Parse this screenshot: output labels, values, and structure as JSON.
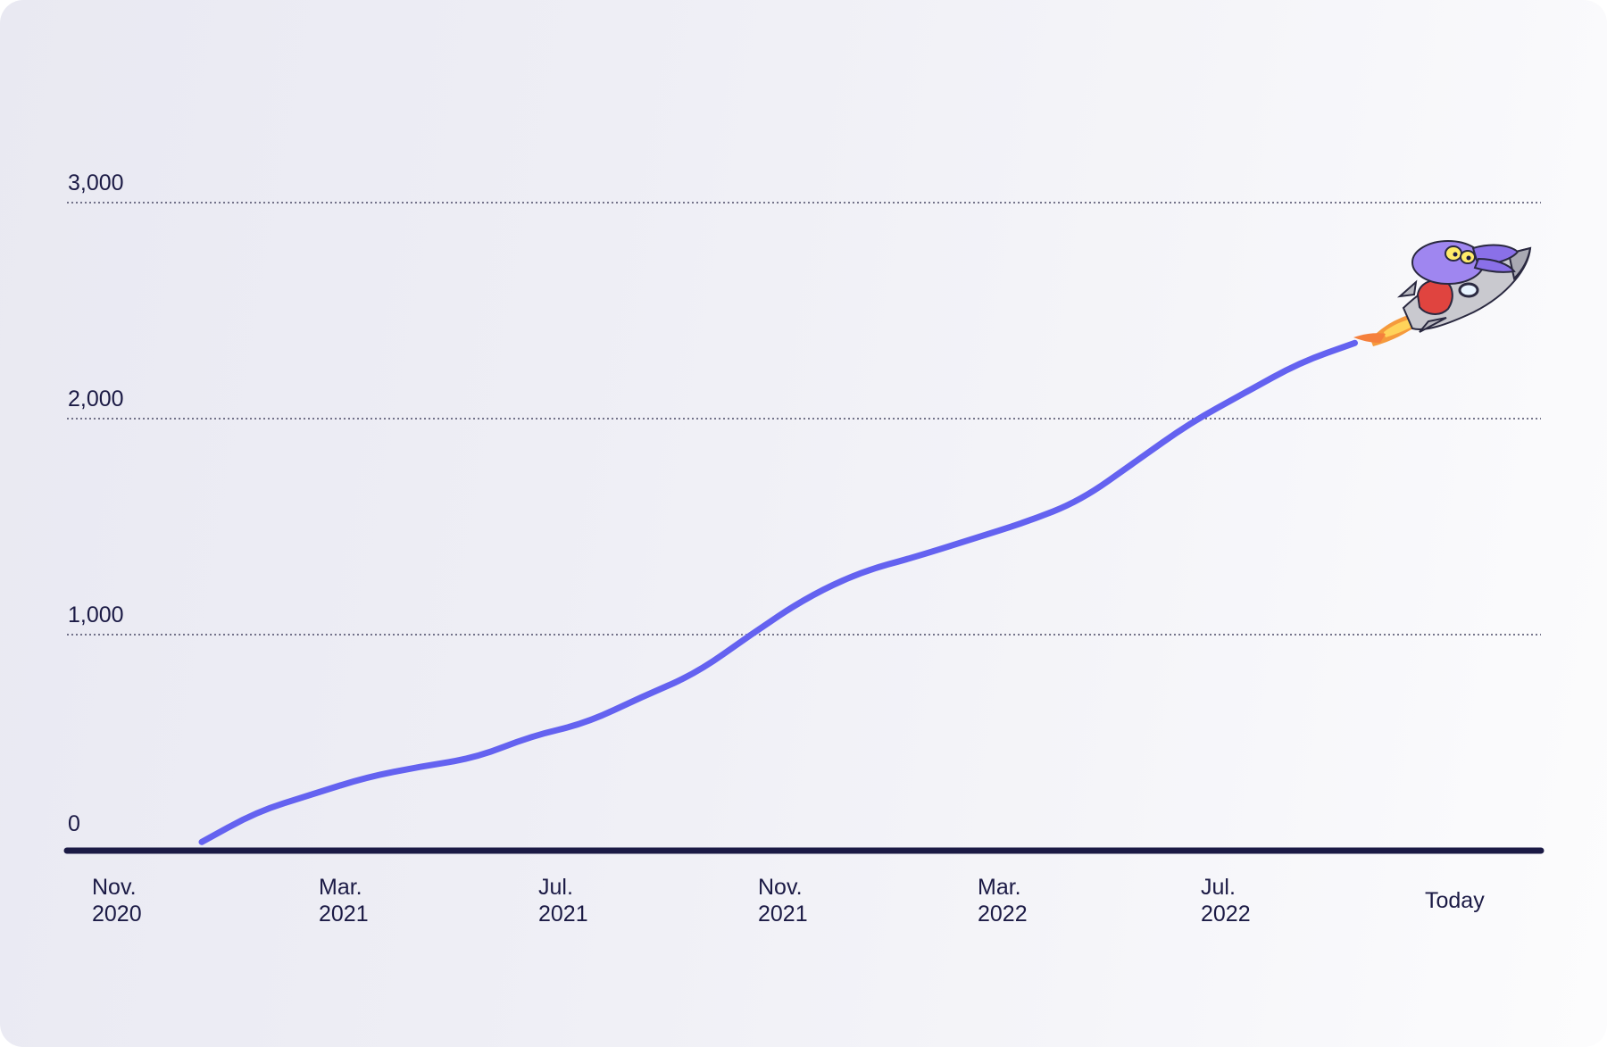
{
  "chart_data": {
    "type": "line",
    "x_ticks": [
      {
        "line1": "Nov.",
        "line2": "2020"
      },
      {
        "line1": "Mar.",
        "line2": "2021"
      },
      {
        "line1": "Jul.",
        "line2": "2021"
      },
      {
        "line1": "Nov.",
        "line2": "2021"
      },
      {
        "line1": "Mar.",
        "line2": "2022"
      },
      {
        "line1": "Jul.",
        "line2": "2022"
      },
      {
        "line1": "Today",
        "line2": ""
      }
    ],
    "y_ticks": [
      "0",
      "1,000",
      "2,000",
      "3,000"
    ],
    "ylim": [
      0,
      3000
    ],
    "grid": "dotted horizontal",
    "series": [
      {
        "color": "#6462f0",
        "points": [
          {
            "x": "2021-01",
            "y": 40
          },
          {
            "x": "2021-02",
            "y": 180
          },
          {
            "x": "2021-03",
            "y": 260
          },
          {
            "x": "2021-04",
            "y": 340
          },
          {
            "x": "2021-05",
            "y": 390
          },
          {
            "x": "2021-06",
            "y": 430
          },
          {
            "x": "2021-07",
            "y": 530
          },
          {
            "x": "2021-08",
            "y": 590
          },
          {
            "x": "2021-09",
            "y": 710
          },
          {
            "x": "2021-10",
            "y": 820
          },
          {
            "x": "2021-11",
            "y": 1000
          },
          {
            "x": "2021-12",
            "y": 1170
          },
          {
            "x": "2022-01",
            "y": 1290
          },
          {
            "x": "2022-02",
            "y": 1360
          },
          {
            "x": "2022-03",
            "y": 1440
          },
          {
            "x": "2022-04",
            "y": 1520
          },
          {
            "x": "2022-05",
            "y": 1620
          },
          {
            "x": "2022-06",
            "y": 1800
          },
          {
            "x": "2022-07",
            "y": 1980
          },
          {
            "x": "2022-08",
            "y": 2120
          },
          {
            "x": "2022-09",
            "y": 2260
          },
          {
            "x": "2022-10",
            "y": 2350
          }
        ]
      }
    ],
    "axis_color": "#1b1a45",
    "mascot": "rocket-mascot-icon"
  }
}
